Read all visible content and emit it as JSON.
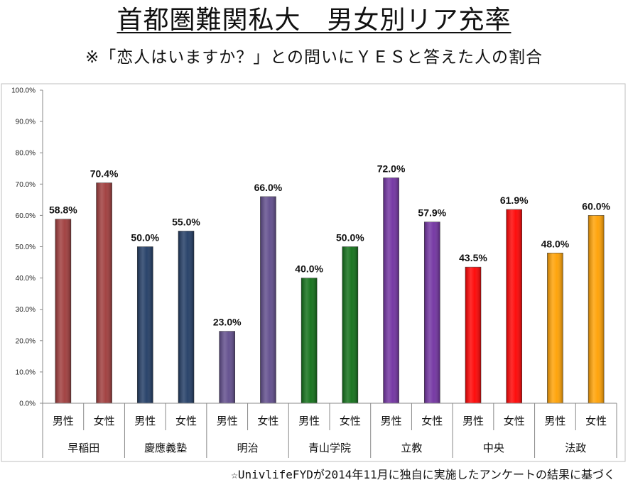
{
  "title": "首都圏難関私大　男女別リア充率",
  "subtitle": "※「恋人はいますか？」との問いにＹＥＳと答えた人の割合",
  "source": "☆UnivlifeFYDが2014年11月に独自に実施したアンケートの結果に基づく",
  "chart_data": {
    "type": "bar",
    "title": "首都圏難関私大　男女別リア充率",
    "ylim": [
      0,
      100
    ],
    "y_ticks": [
      "0.0%",
      "10.0%",
      "20.0%",
      "30.0%",
      "40.0%",
      "50.0%",
      "60.0%",
      "70.0%",
      "80.0%",
      "90.0%",
      "100.0%"
    ],
    "grid": false,
    "groups": [
      {
        "name": "早稲田",
        "color": "#9e3a3a",
        "bars": [
          {
            "label": "男性",
            "value": 58.8,
            "text": "58.8%"
          },
          {
            "label": "女性",
            "value": 70.4,
            "text": "70.4%"
          }
        ]
      },
      {
        "name": "慶應義塾",
        "color": "#1f3a63",
        "bars": [
          {
            "label": "男性",
            "value": 50.0,
            "text": "50.0%"
          },
          {
            "label": "女性",
            "value": 55.0,
            "text": "55.0%"
          }
        ]
      },
      {
        "name": "明治",
        "color": "#5f4b8b",
        "bars": [
          {
            "label": "男性",
            "value": 23.0,
            "text": "23.0%"
          },
          {
            "label": "女性",
            "value": 66.0,
            "text": "66.0%"
          }
        ]
      },
      {
        "name": "青山学院",
        "color": "#0f6e16",
        "bars": [
          {
            "label": "男性",
            "value": 40.0,
            "text": "40.0%"
          },
          {
            "label": "女性",
            "value": 50.0,
            "text": "50.0%"
          }
        ]
      },
      {
        "name": "立教",
        "color": "#7030a0",
        "bars": [
          {
            "label": "男性",
            "value": 72.0,
            "text": "72.0%"
          },
          {
            "label": "女性",
            "value": 57.9,
            "text": "57.9%"
          }
        ]
      },
      {
        "name": "中央",
        "color": "#ff0000",
        "bars": [
          {
            "label": "男性",
            "value": 43.5,
            "text": "43.5%"
          },
          {
            "label": "女性",
            "value": 61.9,
            "text": "61.9%"
          }
        ]
      },
      {
        "name": "法政",
        "color": "#ffa000",
        "bars": [
          {
            "label": "男性",
            "value": 48.0,
            "text": "48.0%"
          },
          {
            "label": "女性",
            "value": 60.0,
            "text": "60.0%"
          }
        ]
      }
    ]
  }
}
